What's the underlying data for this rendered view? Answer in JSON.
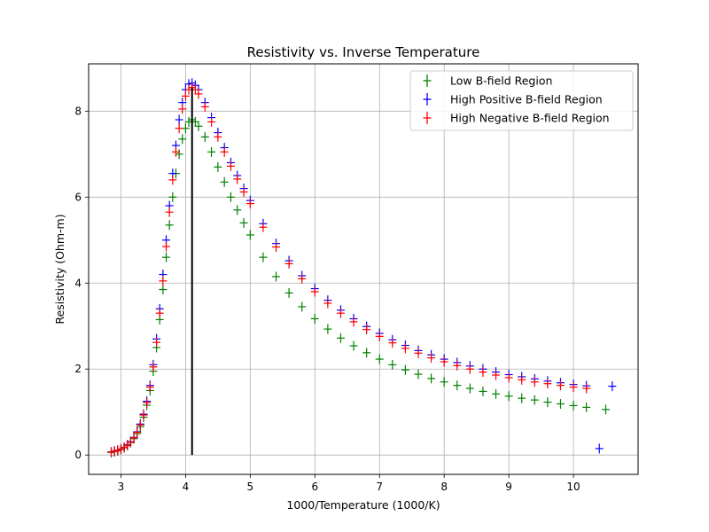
{
  "chart_data": {
    "type": "scatter",
    "title": "Resistivity vs. Inverse Temperature",
    "xlabel": "1000/Temperature (1000/K)",
    "ylabel": "Resistivity (Ohm-m)",
    "xlim": [
      2.5,
      11.0
    ],
    "ylim": [
      -0.45,
      9.1
    ],
    "xticks": [
      3,
      4,
      5,
      6,
      7,
      8,
      9,
      10
    ],
    "yticks": [
      0,
      2,
      4,
      6,
      8
    ],
    "grid": true,
    "legend_position": "top-right",
    "vline": {
      "x": 4.1,
      "y0": 0,
      "y1": 8.55,
      "color": "#000000"
    },
    "series": [
      {
        "name": "Low B-field Region",
        "color": "#008000",
        "x": [
          2.85,
          2.9,
          2.95,
          3.0,
          3.05,
          3.1,
          3.15,
          3.2,
          3.25,
          3.3,
          3.35,
          3.4,
          3.45,
          3.5,
          3.55,
          3.6,
          3.65,
          3.7,
          3.75,
          3.8,
          3.85,
          3.9,
          3.95,
          4.0,
          4.05,
          4.1,
          4.15,
          4.2,
          4.3,
          4.4,
          4.5,
          4.6,
          4.7,
          4.8,
          4.9,
          5.0,
          5.2,
          5.4,
          5.6,
          5.8,
          6.0,
          6.2,
          6.4,
          6.6,
          6.8,
          7.0,
          7.2,
          7.4,
          7.6,
          7.8,
          8.0,
          8.2,
          8.4,
          8.6,
          8.8,
          9.0,
          9.2,
          9.4,
          9.6,
          9.8,
          10.0,
          10.2,
          10.5
        ],
        "y": [
          0.06,
          0.08,
          0.1,
          0.13,
          0.17,
          0.22,
          0.29,
          0.38,
          0.5,
          0.66,
          0.88,
          1.16,
          1.5,
          1.95,
          2.5,
          3.15,
          3.85,
          4.6,
          5.35,
          6.0,
          6.55,
          7.0,
          7.35,
          7.6,
          7.75,
          7.8,
          7.75,
          7.65,
          7.4,
          7.05,
          6.7,
          6.35,
          6.0,
          5.7,
          5.4,
          5.12,
          4.6,
          4.15,
          3.77,
          3.45,
          3.17,
          2.93,
          2.72,
          2.54,
          2.38,
          2.23,
          2.1,
          1.98,
          1.88,
          1.78,
          1.7,
          1.62,
          1.55,
          1.48,
          1.42,
          1.37,
          1.32,
          1.28,
          1.23,
          1.19,
          1.15,
          1.11,
          1.06
        ]
      },
      {
        "name": "High Positive B-field Region",
        "color": "#0000ff",
        "x": [
          2.85,
          2.9,
          2.95,
          3.0,
          3.05,
          3.1,
          3.15,
          3.2,
          3.25,
          3.3,
          3.35,
          3.4,
          3.45,
          3.5,
          3.55,
          3.6,
          3.65,
          3.7,
          3.75,
          3.8,
          3.85,
          3.9,
          3.95,
          4.0,
          4.05,
          4.1,
          4.15,
          4.2,
          4.3,
          4.4,
          4.5,
          4.6,
          4.7,
          4.8,
          4.9,
          5.0,
          5.2,
          5.4,
          5.6,
          5.8,
          6.0,
          6.2,
          6.4,
          6.6,
          6.8,
          7.0,
          7.2,
          7.4,
          7.6,
          7.8,
          8.0,
          8.2,
          8.4,
          8.6,
          8.8,
          9.0,
          9.2,
          9.4,
          9.6,
          9.8,
          10.0,
          10.2,
          10.4,
          10.6
        ],
        "y": [
          0.07,
          0.09,
          0.11,
          0.14,
          0.18,
          0.24,
          0.31,
          0.41,
          0.54,
          0.72,
          0.95,
          1.25,
          1.62,
          2.1,
          2.7,
          3.4,
          4.2,
          5.0,
          5.8,
          6.55,
          7.2,
          7.8,
          8.2,
          8.5,
          8.63,
          8.65,
          8.6,
          8.5,
          8.2,
          7.85,
          7.5,
          7.15,
          6.8,
          6.5,
          6.2,
          5.92,
          5.38,
          4.92,
          4.52,
          4.17,
          3.87,
          3.6,
          3.37,
          3.17,
          2.99,
          2.83,
          2.68,
          2.55,
          2.43,
          2.33,
          2.23,
          2.15,
          2.07,
          2.0,
          1.93,
          1.87,
          1.82,
          1.77,
          1.72,
          1.68,
          1.64,
          1.61,
          0.15,
          1.6
        ]
      },
      {
        "name": "High Negative B-field Region",
        "color": "#ff0000",
        "x": [
          2.85,
          2.9,
          2.95,
          3.0,
          3.05,
          3.1,
          3.15,
          3.2,
          3.25,
          3.3,
          3.35,
          3.4,
          3.45,
          3.5,
          3.55,
          3.6,
          3.65,
          3.7,
          3.75,
          3.8,
          3.85,
          3.9,
          3.95,
          4.0,
          4.05,
          4.1,
          4.15,
          4.2,
          4.3,
          4.4,
          4.5,
          4.6,
          4.7,
          4.8,
          4.9,
          5.0,
          5.2,
          5.4,
          5.6,
          5.8,
          6.0,
          6.2,
          6.4,
          6.6,
          6.8,
          7.0,
          7.2,
          7.4,
          7.6,
          7.8,
          8.0,
          8.2,
          8.4,
          8.6,
          8.8,
          9.0,
          9.2,
          9.4,
          9.6,
          9.8,
          10.0,
          10.2
        ],
        "y": [
          0.07,
          0.09,
          0.11,
          0.14,
          0.18,
          0.23,
          0.3,
          0.4,
          0.53,
          0.7,
          0.93,
          1.22,
          1.58,
          2.05,
          2.62,
          3.3,
          4.05,
          4.85,
          5.65,
          6.4,
          7.05,
          7.6,
          8.05,
          8.35,
          8.5,
          8.55,
          8.5,
          8.4,
          8.1,
          7.75,
          7.4,
          7.05,
          6.72,
          6.42,
          6.12,
          5.85,
          5.3,
          4.84,
          4.45,
          4.1,
          3.8,
          3.53,
          3.3,
          3.1,
          2.92,
          2.76,
          2.61,
          2.48,
          2.37,
          2.26,
          2.17,
          2.08,
          2.0,
          1.93,
          1.86,
          1.8,
          1.75,
          1.7,
          1.66,
          1.62,
          1.58,
          1.55
        ]
      }
    ]
  }
}
